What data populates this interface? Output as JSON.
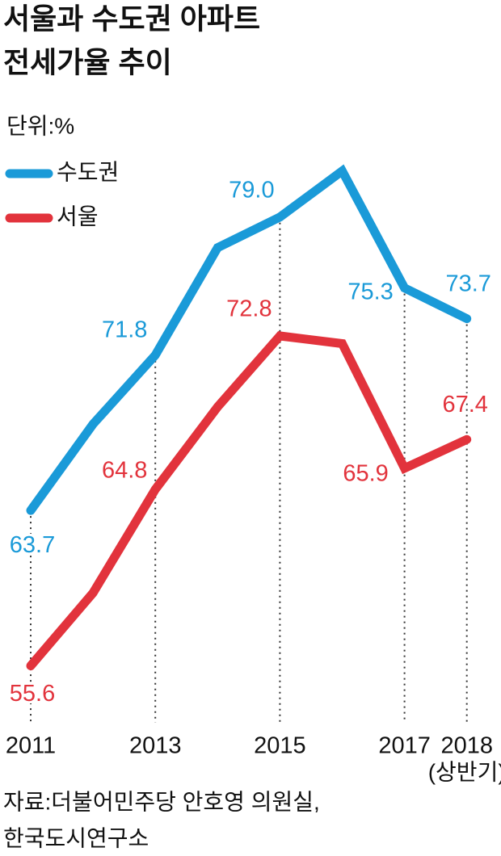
{
  "chart_data": {
    "type": "line",
    "title": [
      "서울과 수도권 아파트",
      "전세가율 추이"
    ],
    "unit": "단위:%",
    "categories": [
      "2011",
      null,
      "2013",
      null,
      "2015",
      null,
      "2017",
      "2018"
    ],
    "category_notes": [
      null,
      null,
      null,
      null,
      null,
      null,
      null,
      "(상반기)"
    ],
    "ylim": [
      52,
      84
    ],
    "series": [
      {
        "name": "수도권",
        "color": "#1a9ad8",
        "values": [
          63.7,
          68.2,
          71.8,
          77.4,
          79.0,
          81.4,
          75.3,
          73.7
        ],
        "value_labels": [
          "63.7",
          null,
          "71.8",
          null,
          "79.0",
          null,
          "75.3",
          "73.7"
        ]
      },
      {
        "name": "서울",
        "color": "#e2333c",
        "values": [
          55.6,
          59.4,
          64.8,
          69.1,
          72.8,
          72.4,
          65.9,
          67.4
        ],
        "value_labels": [
          "55.6",
          null,
          "64.8",
          null,
          "72.8",
          null,
          "65.9",
          "67.4"
        ]
      }
    ],
    "source": [
      "자료:더불어민주당 안호영 의원실,",
      "한국도시연구소"
    ]
  }
}
